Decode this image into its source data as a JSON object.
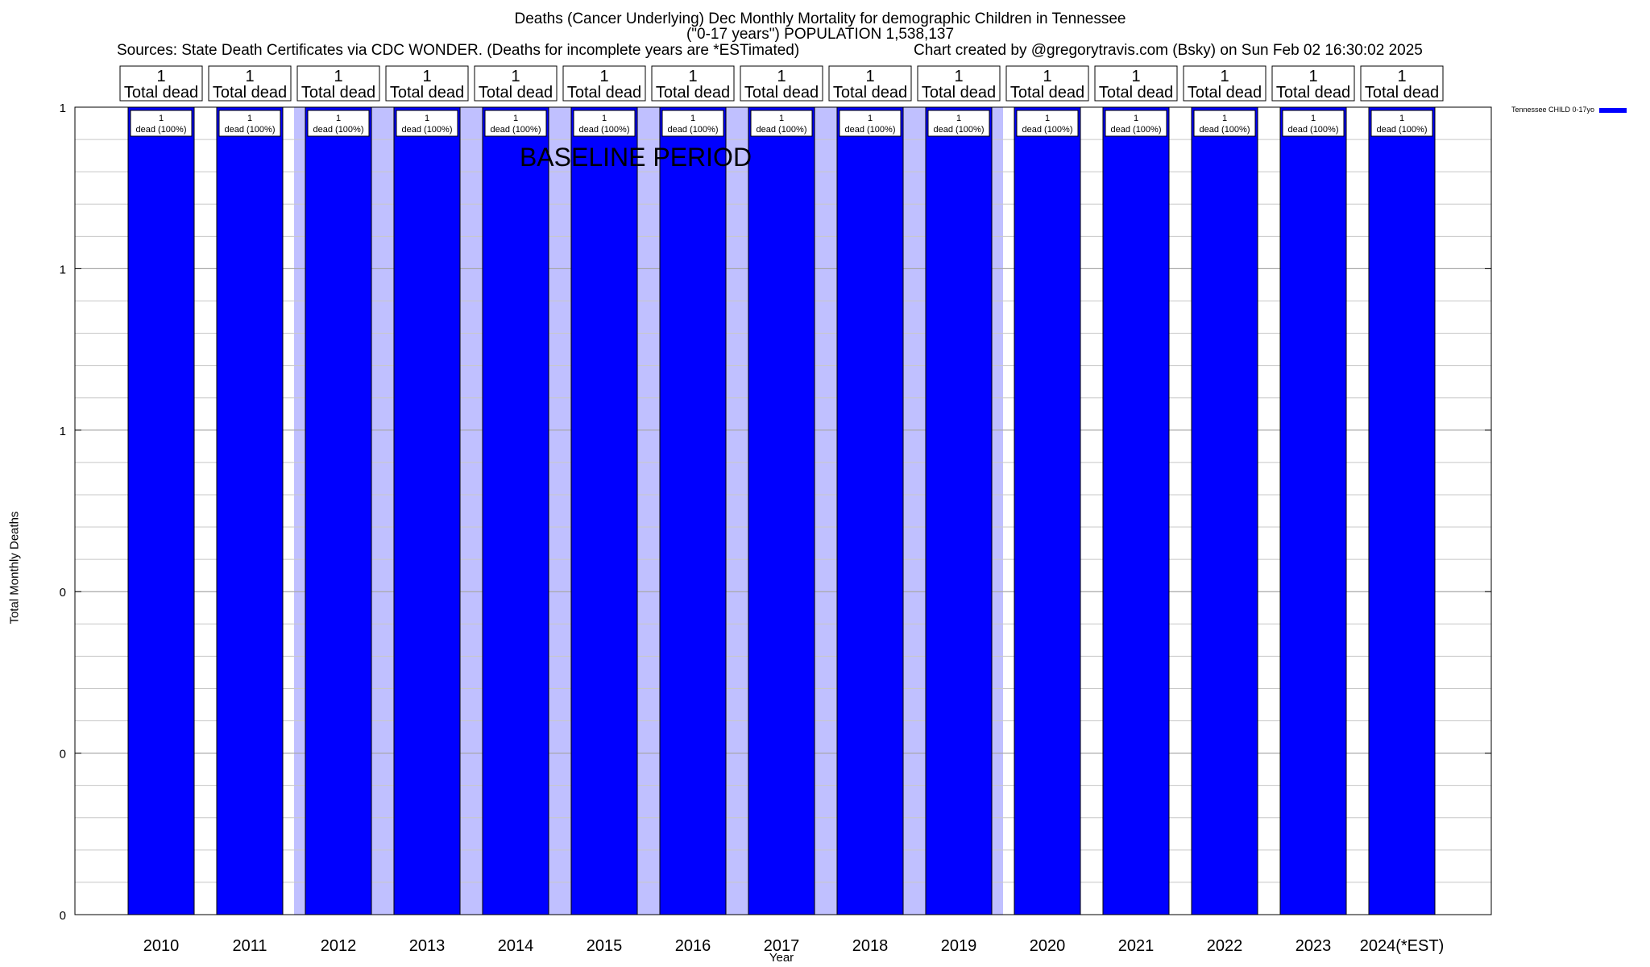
{
  "titles": {
    "line1": "Deaths (Cancer Underlying) Dec Monthly Mortality for demographic Children in Tennessee",
    "line2": "(\"0-17 years\") POPULATION 1,538,137",
    "sources": "Sources: State Death Certificates via CDC WONDER. (Deaths for incomplete years are *ESTimated)",
    "credit": "Chart created by @gregorytravis.com (Bsky) on Sun Feb 02 16:30:02 2025"
  },
  "chart_data": {
    "type": "bar",
    "xlabel": "Year",
    "ylabel": "Total Monthly Deaths",
    "ylim": [
      0,
      1
    ],
    "yticks": [
      {
        "value": 0,
        "label": "0"
      },
      {
        "value": 0.2,
        "label": "0"
      },
      {
        "value": 0.4,
        "label": "0"
      },
      {
        "value": 0.6,
        "label": "1"
      },
      {
        "value": 0.8,
        "label": "1"
      },
      {
        "value": 1,
        "label": "1"
      }
    ],
    "categories": [
      "2010",
      "2011",
      "2012",
      "2013",
      "2014",
      "2015",
      "2016",
      "2017",
      "2018",
      "2019",
      "2020",
      "2021",
      "2022",
      "2023",
      "2024(*EST)"
    ],
    "series": [
      {
        "name": "Tennessee CHILD 0-17yo",
        "color": "#0000ff",
        "values": [
          1,
          1,
          1,
          1,
          1,
          1,
          1,
          1,
          1,
          1,
          1,
          1,
          1,
          1,
          1
        ],
        "bar_labels": [
          "1",
          "1",
          "1",
          "1",
          "1",
          "1",
          "1",
          "1",
          "1",
          "1",
          "1",
          "1",
          "1",
          "1",
          "1"
        ],
        "bar_sublabels": [
          "dead (100%)",
          "dead (100%)",
          "dead (100%)",
          "dead (100%)",
          "dead (100%)",
          "dead (100%)",
          "dead (100%)",
          "dead (100%)",
          "dead (100%)",
          "dead (100%)",
          "dead (100%)",
          "dead (100%)",
          "dead (100%)",
          "dead (100%)",
          "dead (100%)"
        ]
      }
    ],
    "top_labels": [
      "1",
      "1",
      "1",
      "1",
      "1",
      "1",
      "1",
      "1",
      "1",
      "1",
      "1",
      "1",
      "1",
      "1",
      "1"
    ],
    "top_sublabel": "Total dead",
    "baseline_period": {
      "label": "BASELINE PERIOD",
      "from": "2012",
      "to": "2019",
      "color": "#c0c0ff"
    },
    "grid": true,
    "legend_position": "top-right"
  }
}
